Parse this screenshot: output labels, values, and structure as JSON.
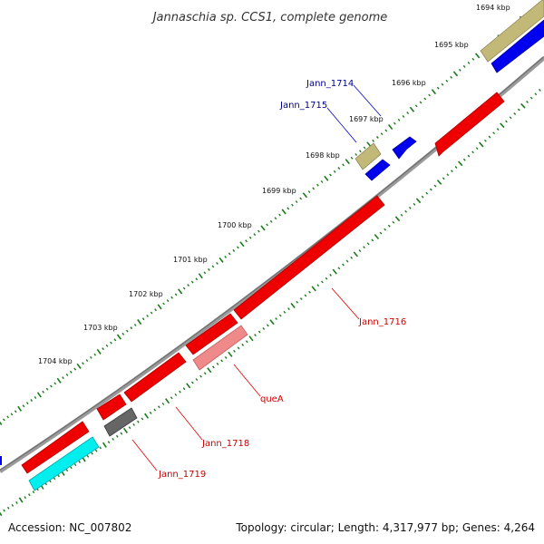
{
  "title": "Jannaschia sp. CCS1, complete genome",
  "footer": {
    "accession": "Accession: NC_007802",
    "summary": "Topology: circular; Length: 4,317,977 bp; Genes: 4,264"
  },
  "colors": {
    "backbone": "#8a8a8a",
    "tick": "#1a7a1a",
    "red": "#ee0000",
    "red_dark": "#b00000",
    "blue": "#0000ee",
    "blue_dark": "#0000a0",
    "khaki": "#c2b878",
    "khaki_dark": "#8f8656",
    "pink": "#f08a8a",
    "pink_dark": "#c06060",
    "gray": "#666666",
    "gray_dark": "#3a3a3a",
    "cyan": "#00eeee",
    "cyan_dark": "#00aaaa",
    "label_blue": "#00008b",
    "label_red": "#cc0000"
  },
  "scale": {
    "labels": [
      "1694 kbp",
      "1695 kbp",
      "1696 kbp",
      "1697 kbp",
      "1698 kbp",
      "1699 kbp",
      "1700 kbp",
      "1701 kbp",
      "1702 kbp",
      "1703 kbp",
      "1704 kbp"
    ]
  },
  "genes": [
    {
      "id": "g-khaki-top",
      "label": "",
      "color": "khaki",
      "strand": "outer2"
    },
    {
      "id": "g-blue-top",
      "label": "",
      "color": "blue",
      "strand": "outer1"
    },
    {
      "id": "g-red-top",
      "label": "",
      "color": "red",
      "strand": "inner1"
    },
    {
      "id": "g-blue-1714",
      "label": "Jann_1714",
      "color": "blue",
      "strand": "outer1"
    },
    {
      "id": "g-khaki-1715",
      "label": "",
      "color": "khaki",
      "strand": "outer2"
    },
    {
      "id": "g-blue-1715",
      "label": "Jann_1715",
      "color": "blue",
      "strand": "outer1"
    },
    {
      "id": "g-red-1716",
      "label": "Jann_1716",
      "color": "red",
      "strand": "inner1"
    },
    {
      "id": "g-pink-quea",
      "label": "queA",
      "color": "pink",
      "strand": "inner2"
    },
    {
      "id": "g-red-1718",
      "label": "Jann_1718",
      "color": "red",
      "strand": "inner1"
    },
    {
      "id": "g-red-1719",
      "label": "Jann_1719",
      "color": "red",
      "strand": "inner1"
    },
    {
      "id": "g-gray",
      "label": "",
      "color": "gray",
      "strand": "inner2"
    },
    {
      "id": "g-red-bottom",
      "label": "",
      "color": "red",
      "strand": "inner1"
    },
    {
      "id": "g-cyan-bottom",
      "label": "",
      "color": "cyan",
      "strand": "inner2"
    }
  ]
}
